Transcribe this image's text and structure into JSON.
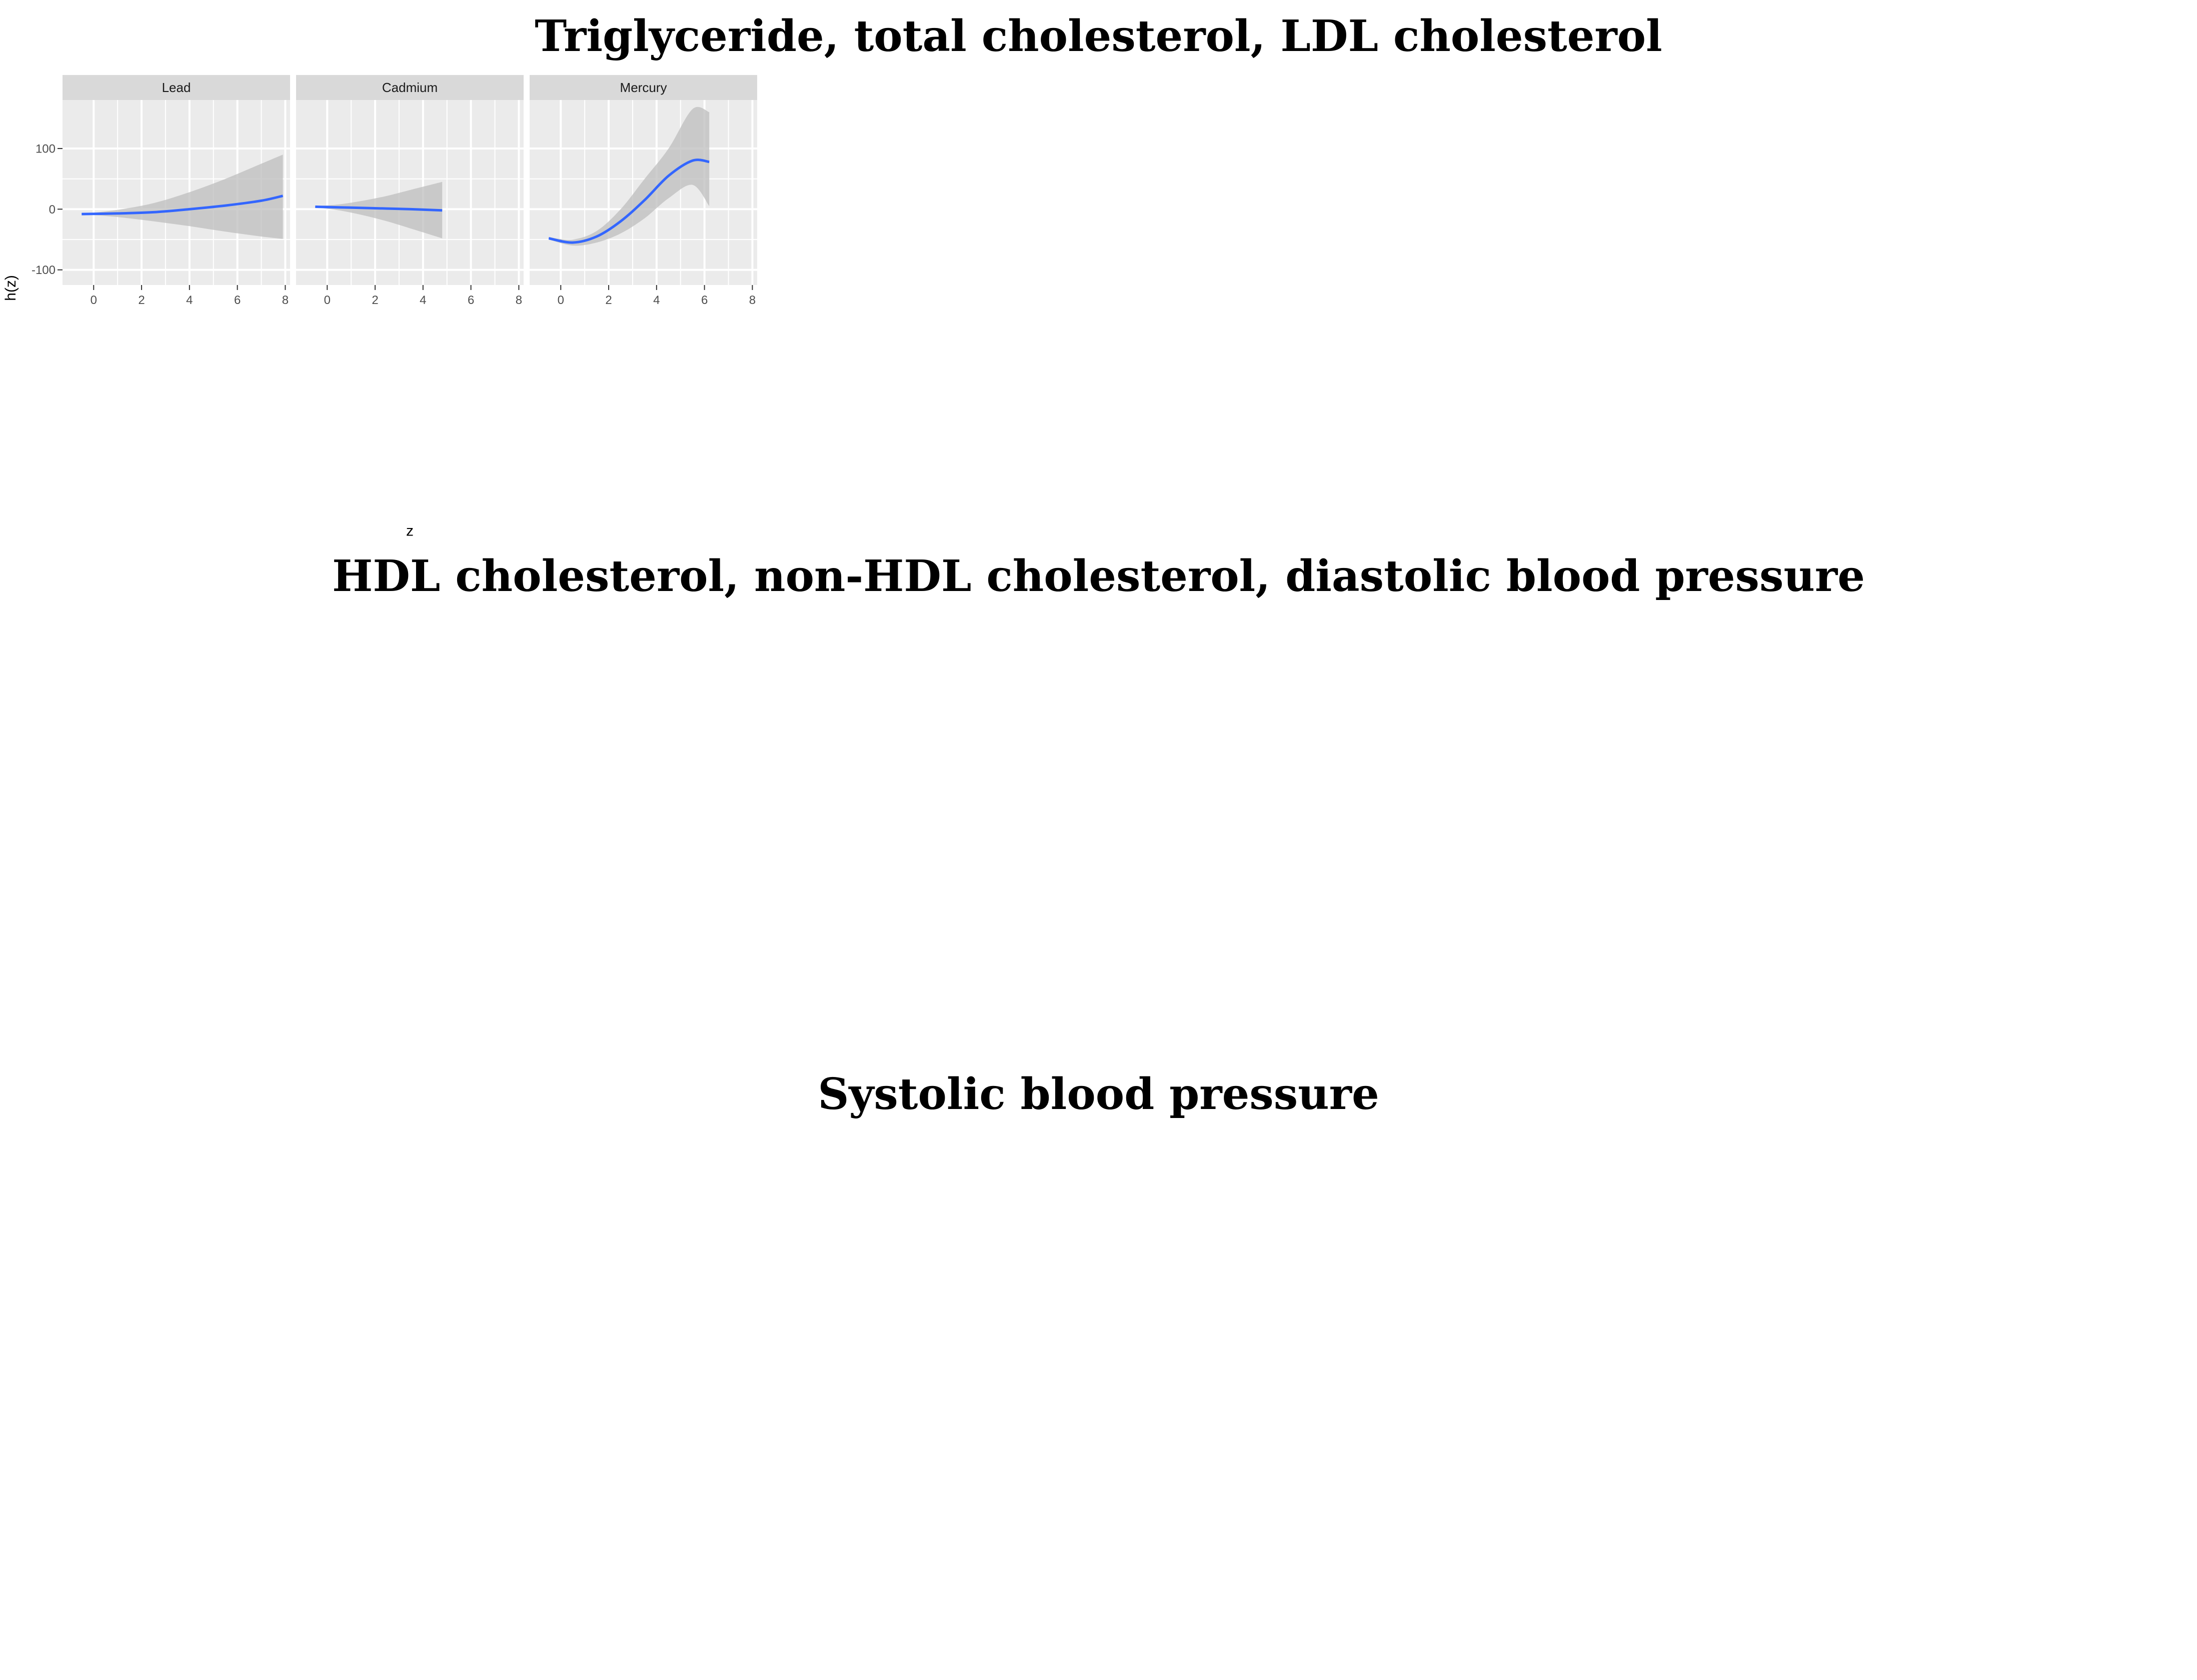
{
  "titles": {
    "row1": "Triglyceride, total cholesterol, LDL cholesterol",
    "row2": "HDL cholesterol, non-HDL cholesterol, diastolic blood pressure",
    "row3": "Systolic blood pressure"
  },
  "colors": {
    "panel_bg": "#ebebeb",
    "strip_bg": "#d9d9d9",
    "grid": "#ffffff",
    "band": "#bdbdbd",
    "line": "#3366ff",
    "text": "#4d4d4d"
  },
  "chart_data": [
    {
      "id": "triglyceride",
      "type": "line",
      "xlabel": "z",
      "ylabel": "h(z)",
      "xlim": [
        -1.3,
        8.2
      ],
      "xticks": [
        0,
        2,
        4,
        6,
        8
      ],
      "xtick_labels": [
        "0",
        "2",
        "4",
        "6",
        "8"
      ],
      "ylim": [
        -125,
        180
      ],
      "yticks": [
        -100,
        0,
        100
      ],
      "ytick_labels": [
        "-100",
        "0",
        "100"
      ],
      "panels": [
        {
          "name": "Lead",
          "x": [
            -0.5,
            1,
            2.5,
            4,
            5.5,
            7,
            7.9
          ],
          "y": [
            -8,
            -7,
            -5,
            0,
            6,
            14,
            22
          ],
          "lower": [
            -8,
            -13,
            -20,
            -28,
            -37,
            -45,
            -49
          ],
          "upper": [
            -8,
            -1,
            10,
            28,
            50,
            75,
            90
          ]
        },
        {
          "name": "Cadmium",
          "x": [
            -0.5,
            0.5,
            1.5,
            2.5,
            3.5,
            4.8
          ],
          "y": [
            4,
            3,
            2,
            1,
            0,
            -2
          ],
          "lower": [
            3,
            -2,
            -10,
            -20,
            -32,
            -48
          ],
          "upper": [
            5,
            8,
            14,
            22,
            32,
            45
          ]
        },
        {
          "name": "Mercury",
          "x": [
            -0.5,
            0.5,
            1.5,
            2.5,
            3.5,
            4.5,
            5.5,
            6.2
          ],
          "y": [
            -48,
            -55,
            -45,
            -20,
            15,
            55,
            80,
            78
          ],
          "lower": [
            -50,
            -60,
            -55,
            -40,
            -15,
            18,
            40,
            5
          ],
          "upper": [
            -46,
            -50,
            -36,
            0,
            50,
            100,
            165,
            160
          ]
        }
      ]
    }
  ]
}
